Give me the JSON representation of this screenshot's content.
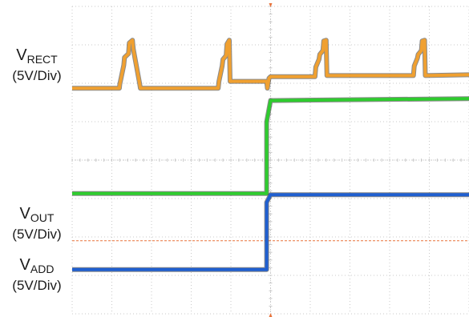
{
  "labels": {
    "rect": {
      "main": "V",
      "sub": "RECT",
      "scale": "(5V/Div)"
    },
    "out": {
      "main": "V",
      "sub": "OUT",
      "scale": "(5V/Div)"
    },
    "add": {
      "main": "V",
      "sub": "ADD",
      "scale": "(5V/Div)"
    }
  },
  "colors": {
    "rect": "#f0a030",
    "out": "#2ecc2e",
    "add": "#1f5fd0",
    "grid": "#c9c9c9",
    "marker": "#e8723a"
  },
  "chart_data": {
    "type": "line",
    "title": "",
    "xlabel": "",
    "ylabel": "",
    "grid": true,
    "xlim": [
      0,
      10
    ],
    "ylim": [
      -4,
      4
    ],
    "x_divisions": 10,
    "y_divisions": 8,
    "volts_per_div": 5,
    "series": [
      {
        "name": "VRECT",
        "x": [
          0,
          1.19,
          1.2,
          1.3,
          1.32,
          1.42,
          1.44,
          1.52,
          1.54,
          1.7,
          1.72,
          3.68,
          3.7,
          3.78,
          3.8,
          3.88,
          3.9,
          3.96,
          3.98,
          4.9,
          4.92,
          4.96,
          5.0,
          6.12,
          6.14,
          6.22,
          6.24,
          6.32,
          6.34,
          6.4,
          6.42,
          8.6,
          8.62,
          8.7,
          8.72,
          8.8,
          8.82,
          8.88,
          8.9,
          10
        ],
        "y": [
          1.87,
          1.87,
          1.97,
          2.47,
          2.67,
          2.77,
          3.05,
          3.12,
          2.9,
          2.0,
          1.87,
          1.87,
          2.05,
          2.45,
          2.62,
          2.72,
          3.02,
          3.12,
          2.05,
          2.05,
          1.87,
          2.13,
          2.17,
          2.17,
          2.42,
          2.62,
          2.75,
          2.85,
          3.1,
          3.12,
          2.2,
          2.2,
          2.45,
          2.65,
          2.75,
          2.85,
          3.1,
          3.12,
          2.2,
          2.22
        ]
      },
      {
        "name": "VOUT",
        "x": [
          0,
          4.9,
          4.9,
          5.0,
          10
        ],
        "y": [
          -0.87,
          -0.87,
          1.0,
          1.55,
          1.6
        ]
      },
      {
        "name": "VADD",
        "x": [
          0,
          4.9,
          4.9,
          5.0,
          10
        ],
        "y": [
          -2.85,
          -2.85,
          -1.1,
          -0.9,
          -0.9
        ]
      }
    ],
    "reference_level": -2.1
  }
}
